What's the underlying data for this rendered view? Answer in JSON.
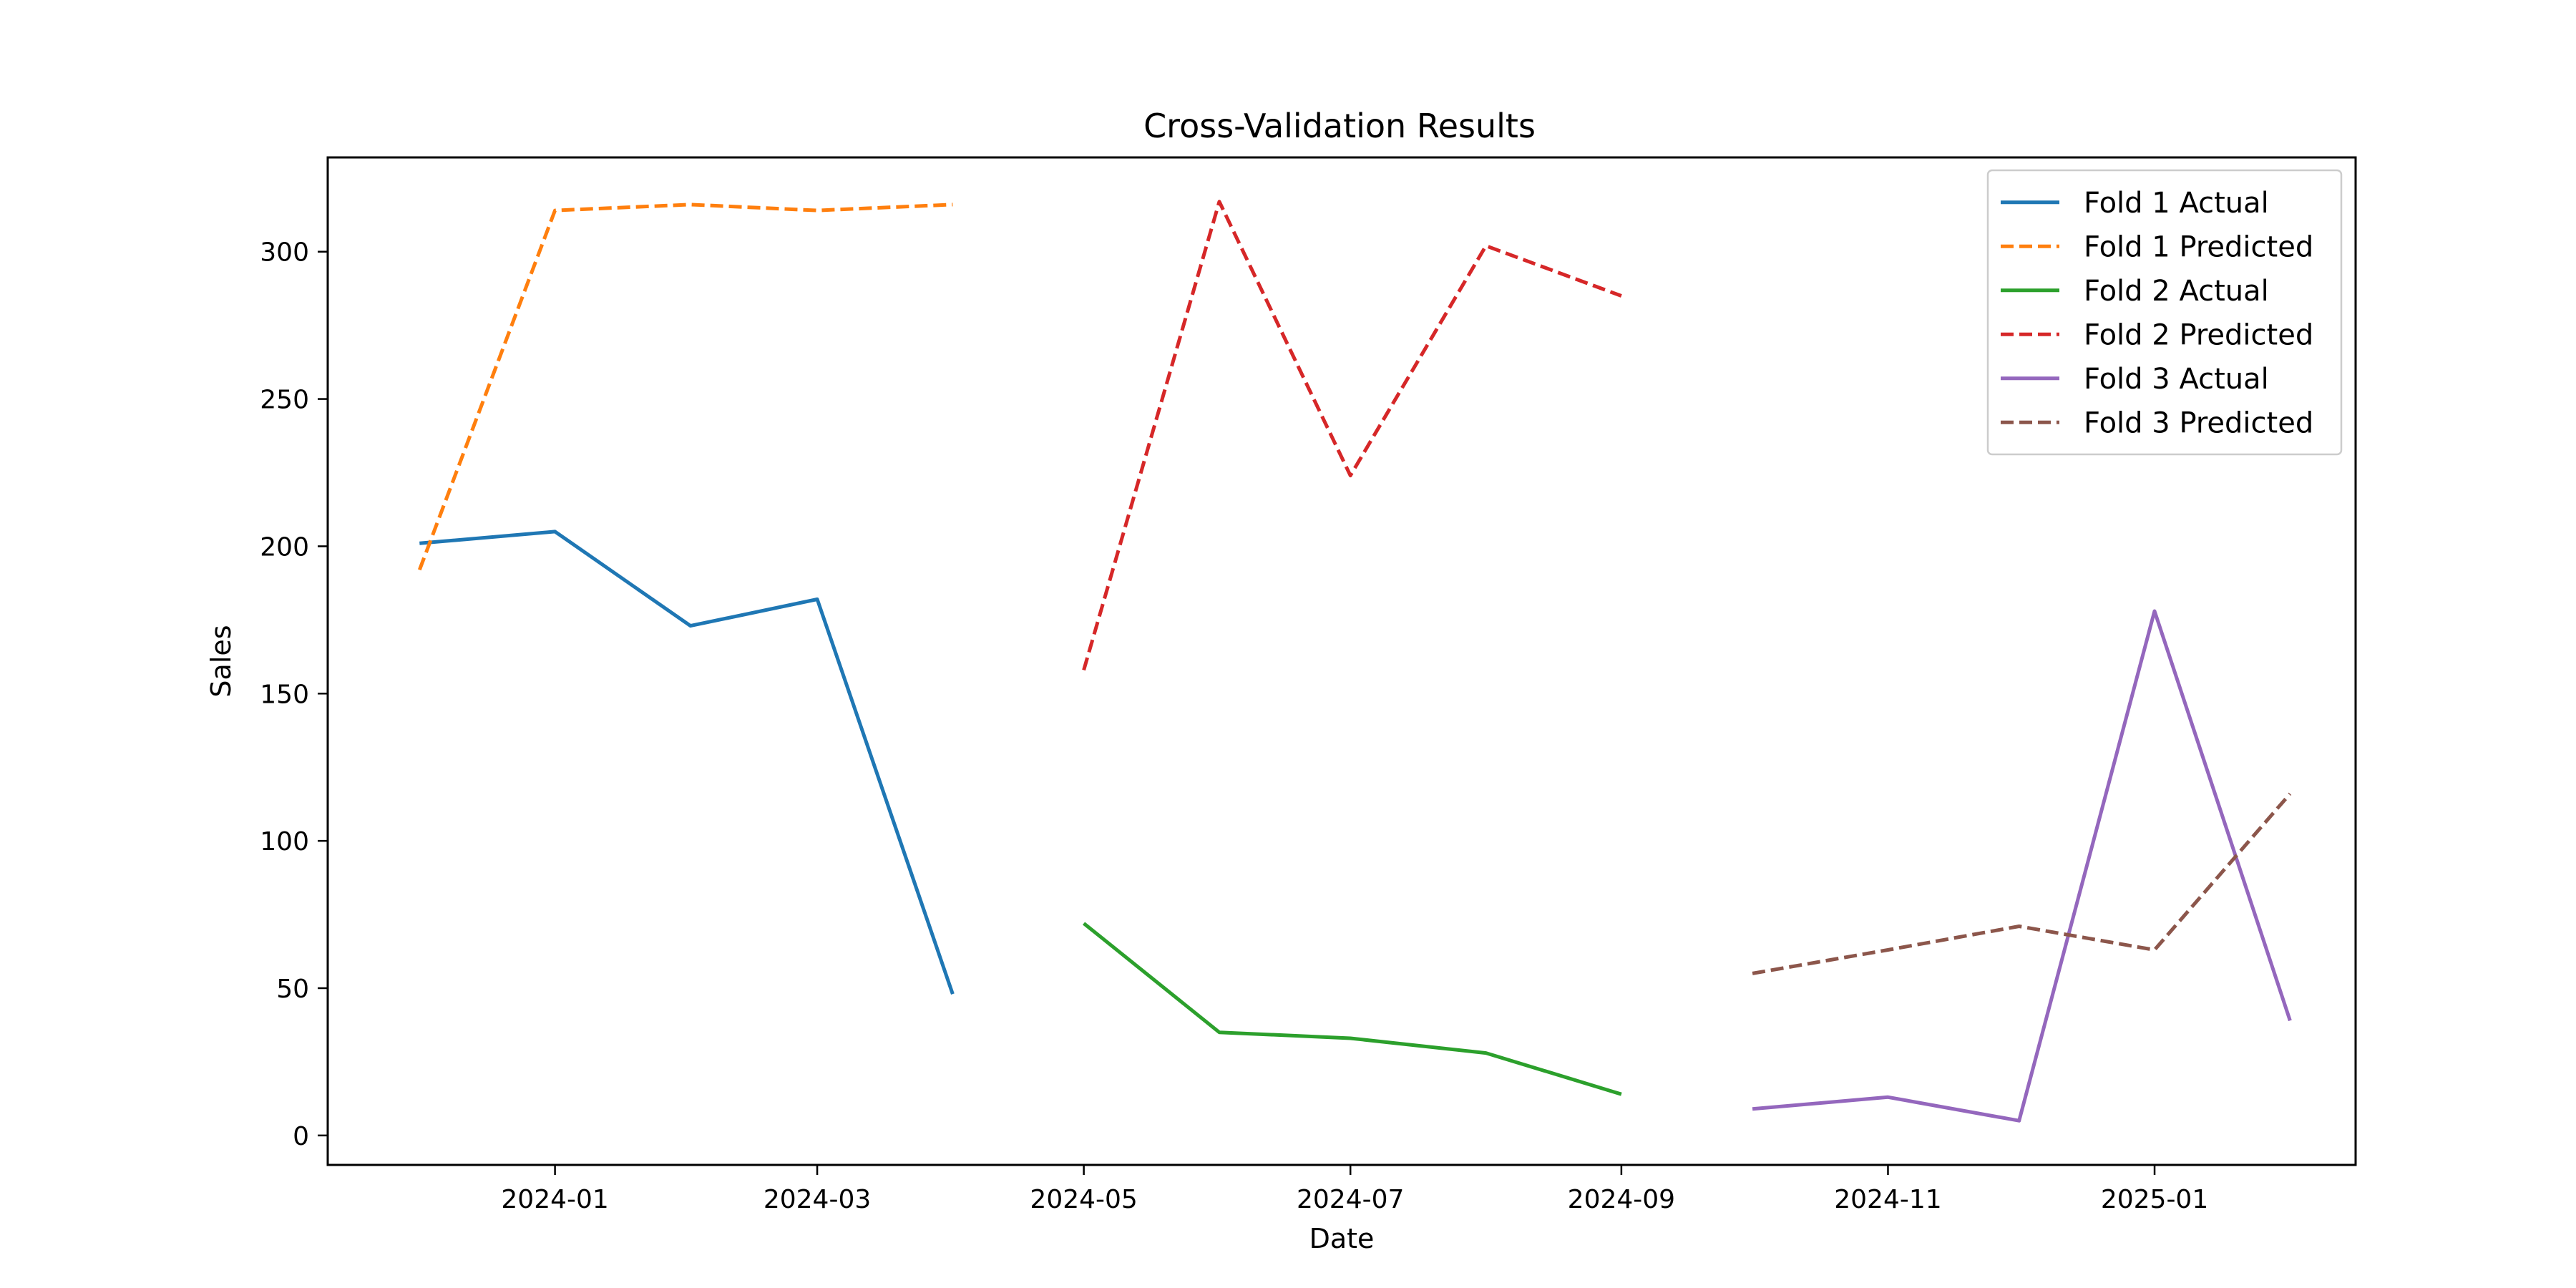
{
  "chart_data": {
    "type": "line",
    "title": "Cross-Validation Results",
    "xlabel": "Date",
    "ylabel": "Sales",
    "xlim": [
      "2023-11-10",
      "2025-02-16"
    ],
    "ylim": [
      -10,
      332
    ],
    "x_ticks": [
      "2024-01-01",
      "2024-03-01",
      "2024-05-01",
      "2024-07-01",
      "2024-09-01",
      "2024-11-01",
      "2025-01-01"
    ],
    "x_tick_labels": [
      "2024-01",
      "2024-03",
      "2024-05",
      "2024-07",
      "2024-09",
      "2024-11",
      "2025-01"
    ],
    "y_ticks": [
      0,
      50,
      100,
      150,
      200,
      250,
      300
    ],
    "y_tick_labels": [
      "0",
      "50",
      "100",
      "150",
      "200",
      "250",
      "300"
    ],
    "grid": false,
    "legend_position": "top-right",
    "series": [
      {
        "name": "Fold 1 Actual",
        "color": "#1f77b4",
        "dash": "solid",
        "x": [
          "2023-12-01",
          "2024-01-01",
          "2024-02-01",
          "2024-03-01",
          "2024-04-01"
        ],
        "values": [
          201,
          205,
          173,
          182,
          48
        ]
      },
      {
        "name": "Fold 1 Predicted",
        "color": "#ff7f0e",
        "dash": "dashed",
        "x": [
          "2023-12-01",
          "2024-01-01",
          "2024-02-01",
          "2024-03-01",
          "2024-04-01"
        ],
        "values": [
          192,
          314,
          316,
          314,
          316
        ]
      },
      {
        "name": "Fold 2 Actual",
        "color": "#2ca02c",
        "dash": "solid",
        "x": [
          "2024-05-01",
          "2024-06-01",
          "2024-07-01",
          "2024-08-01",
          "2024-09-01"
        ],
        "values": [
          72,
          35,
          33,
          28,
          14
        ]
      },
      {
        "name": "Fold 2 Predicted",
        "color": "#d62728",
        "dash": "dashed",
        "x": [
          "2024-05-01",
          "2024-06-01",
          "2024-07-01",
          "2024-08-01",
          "2024-09-01"
        ],
        "values": [
          158,
          317,
          224,
          302,
          285
        ]
      },
      {
        "name": "Fold 3 Actual",
        "color": "#9467bd",
        "dash": "solid",
        "x": [
          "2024-10-01",
          "2024-11-01",
          "2024-12-01",
          "2025-01-01",
          "2025-02-01"
        ],
        "values": [
          9,
          13,
          5,
          178,
          39
        ]
      },
      {
        "name": "Fold 3 Predicted",
        "color": "#8c564b",
        "dash": "dashed",
        "x": [
          "2024-10-01",
          "2024-11-01",
          "2024-12-01",
          "2025-01-01",
          "2025-02-01"
        ],
        "values": [
          55,
          63,
          71,
          63,
          116
        ]
      }
    ]
  }
}
